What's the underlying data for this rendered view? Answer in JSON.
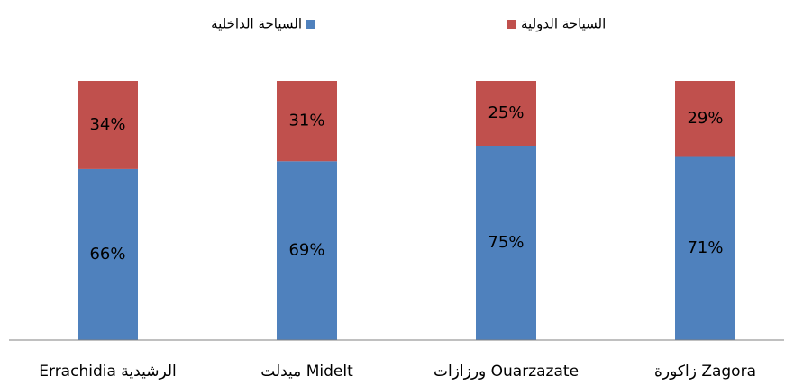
{
  "chart_data": {
    "type": "stacked_bar",
    "categories": [
      "Errachidia الرشيدية",
      "ميدلت Midelt",
      "ورزازات Ouarzazate",
      "زاكورة Zagora"
    ],
    "series": [
      {
        "name": "السياحة الداخلية",
        "color": "#4f81bd",
        "values": [
          66,
          69,
          75,
          71
        ],
        "value_labels": [
          "66%",
          "69%",
          "75%",
          "71%"
        ]
      },
      {
        "name": "السياحة الدولية",
        "color": "#c0504d",
        "values": [
          34,
          31,
          25,
          29
        ],
        "value_labels": [
          "34%",
          "31%",
          "25%",
          "29%"
        ]
      }
    ],
    "ylim": [
      0,
      100
    ]
  }
}
